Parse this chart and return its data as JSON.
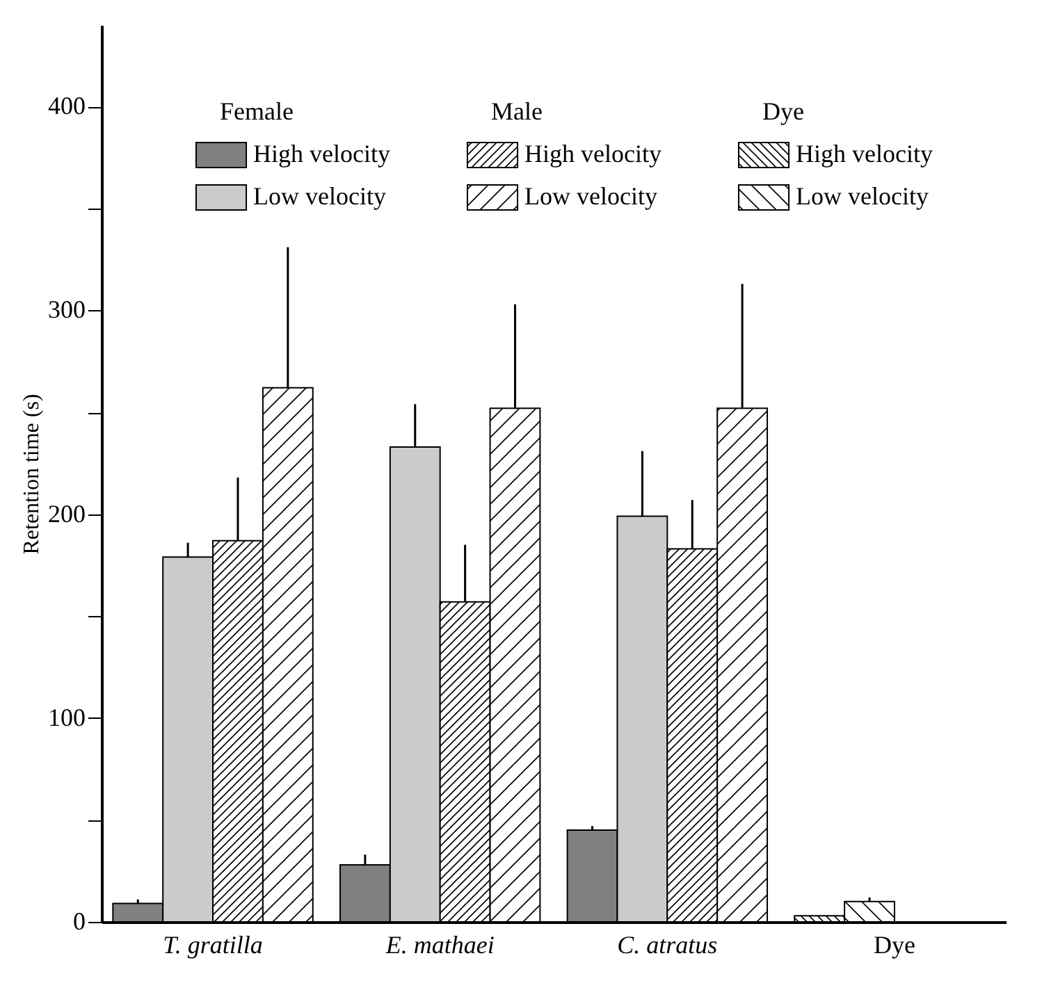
{
  "chart_data": {
    "type": "bar",
    "ylabel": "Retention time (s)",
    "categories": [
      "T. gratilla",
      "E. mathaei",
      "C. atratus",
      "Dye"
    ],
    "series": [
      {
        "name": "High velocity",
        "color": "#808080",
        "values": [
          9,
          28,
          45,
          null
        ],
        "errors": [
          [
            9,
            11
          ],
          [
            28,
            33
          ],
          [
            45,
            47
          ],
          null
        ]
      },
      {
        "name": "Low velocity",
        "color": "#cccccc",
        "values": [
          179,
          233,
          199,
          null
        ],
        "errors": [
          [
            179,
            186
          ],
          [
            233,
            254
          ],
          [
            199,
            231
          ],
          null
        ]
      },
      {
        "name": "High velocity",
        "color": "#000000",
        "values": [
          187,
          157,
          183,
          null
        ],
        "errors": [
          [
            187,
            218
          ],
          [
            157,
            185
          ],
          [
            183,
            207
          ],
          null
        ]
      },
      {
        "name": "Low velocity",
        "color": "#000000",
        "values": [
          262,
          252,
          252,
          null
        ],
        "errors": [
          [
            262,
            331
          ],
          [
            252,
            303
          ],
          [
            252,
            313
          ],
          null
        ]
      },
      {
        "name": "High velocity",
        "color": "#000000",
        "values": [
          null,
          null,
          null,
          3
        ],
        "errors": [
          null,
          null,
          null,
          null
        ]
      },
      {
        "name": "Low velocity",
        "color": "#000000",
        "values": [
          null,
          null,
          null,
          10
        ],
        "errors": [
          null,
          null,
          null,
          [
            10,
            12
          ]
        ]
      }
    ],
    "annotations": [
      "Female",
      "Male",
      "Dye"
    ],
    "ylim": [
      0,
      440
    ],
    "yticks": [
      0,
      {
        "value": 50,
        "label": null
      },
      100,
      {
        "value": 150,
        "label": null
      },
      200,
      {
        "value": 250,
        "label": null
      },
      300,
      {
        "value": 350,
        "label": null
      },
      400
    ],
    "grid": false,
    "legend": "top"
  }
}
